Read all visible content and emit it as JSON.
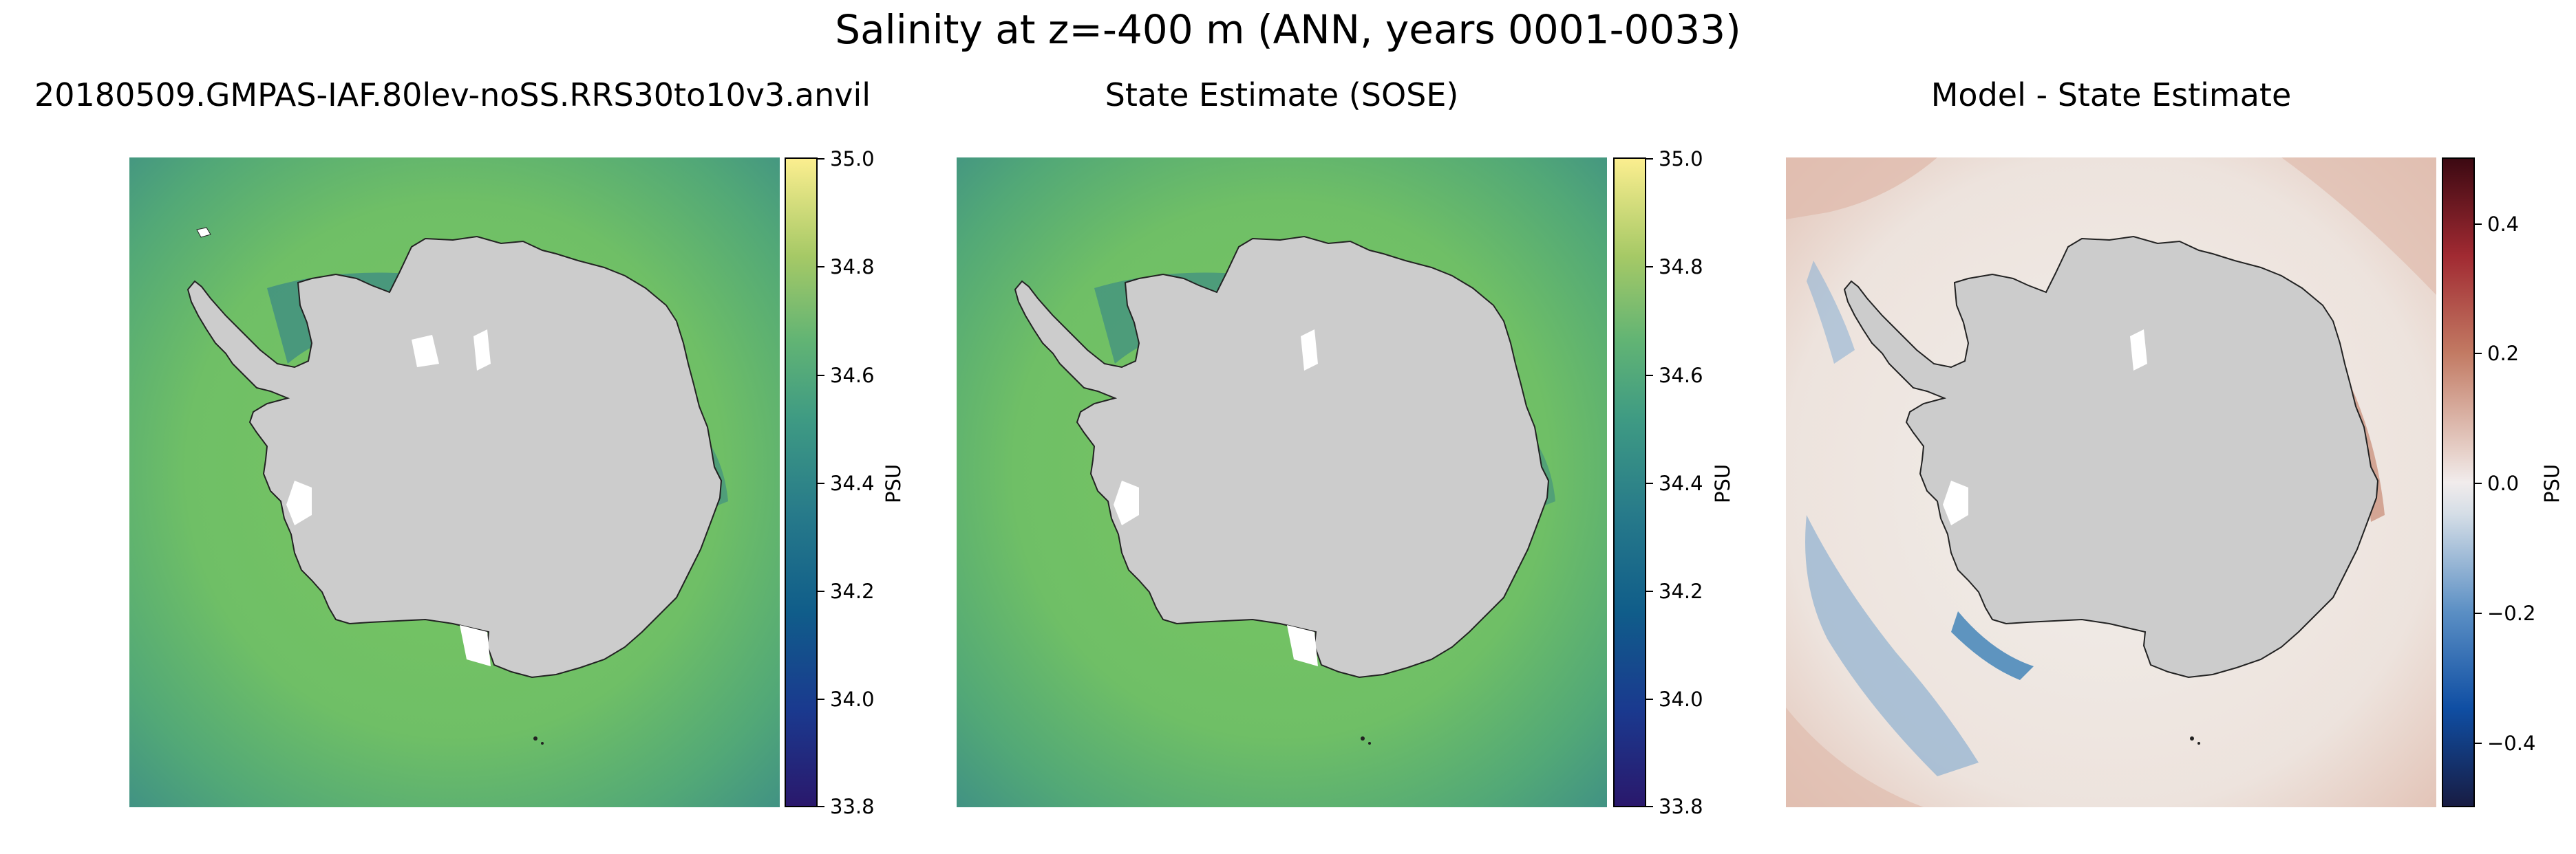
{
  "figure": {
    "title": "Salinity at z=-400 m (ANN, years 0001-0033)"
  },
  "panels": [
    {
      "title": "20180509.GMPAS-IAF.80lev-noSS.RRS30to10v3.anvil",
      "colorbar": {
        "label": "PSU",
        "colormap": "haline (dark purple to yellow)",
        "range": [
          33.8,
          35.0
        ],
        "ticks": [
          "35.0",
          "34.8",
          "34.6",
          "34.4",
          "34.2",
          "34.0",
          "33.8"
        ]
      }
    },
    {
      "title": "State Estimate (SOSE)",
      "colorbar": {
        "label": "PSU",
        "colormap": "haline (dark purple to yellow)",
        "range": [
          33.8,
          35.0
        ],
        "ticks": [
          "35.0",
          "34.8",
          "34.6",
          "34.4",
          "34.2",
          "34.0",
          "33.8"
        ]
      }
    },
    {
      "title": "Model - State Estimate",
      "colorbar": {
        "label": "PSU",
        "colormap": "balance (blue-white-red)",
        "range": [
          -0.5,
          0.5
        ],
        "ticks": [
          "0.4",
          "0.2",
          "0.0",
          "−0.2",
          "−0.4"
        ]
      }
    }
  ],
  "colors": {
    "land": "#cccccc",
    "ocean_open_salinity": "#78c661",
    "ocean_fresh_salinity": "#3b8f8c",
    "ice_shelf": "#ffffff",
    "diff_positive": "#c0604d",
    "diff_negative": "#3a7fb6",
    "diff_zero": "#f1eeea"
  }
}
